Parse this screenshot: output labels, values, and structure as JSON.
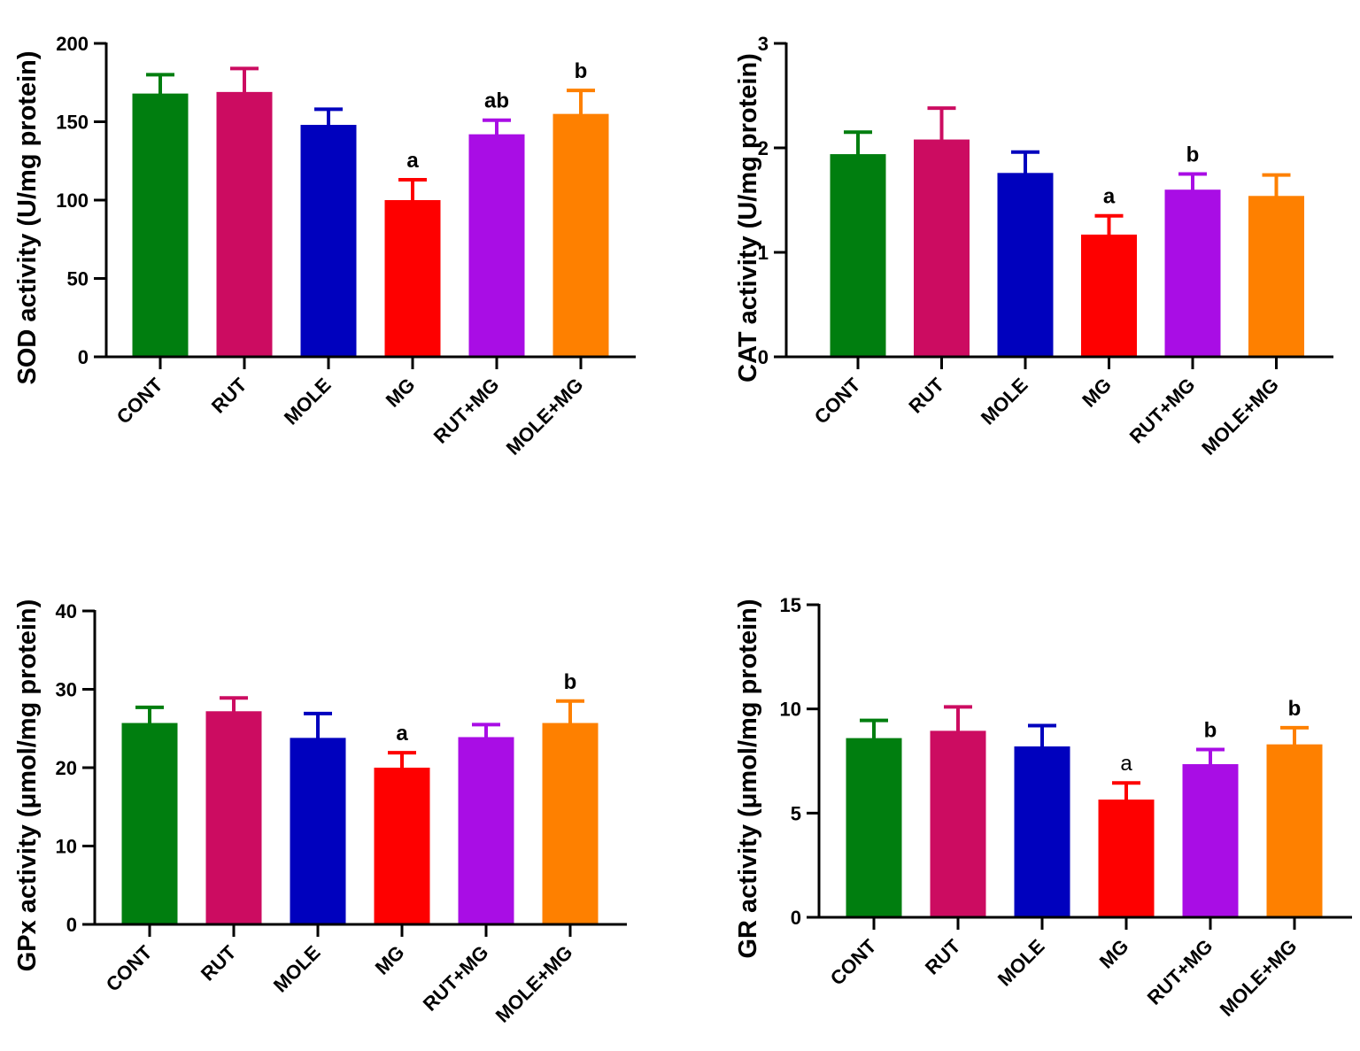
{
  "chart_data": [
    {
      "type": "bar",
      "title": "",
      "xlabel": "",
      "ylabel": "SOD activity (U/mg protein)",
      "ylim": [
        0,
        200
      ],
      "yticks": [
        0,
        50,
        100,
        150,
        200
      ],
      "categories": [
        "CONT",
        "RUT",
        "MOLE",
        "MG",
        "RUT+MG",
        "MOLE+MG"
      ],
      "values": [
        168,
        169,
        148,
        100,
        142,
        155
      ],
      "errors": [
        12,
        15,
        10,
        13,
        9,
        15
      ],
      "significance": [
        "",
        "",
        "",
        "a",
        "ab",
        "b"
      ],
      "colors": [
        "#007e0f",
        "#cc0c61",
        "#0001be",
        "#fe0000",
        "#a90de5",
        "#fe8000"
      ]
    },
    {
      "type": "bar",
      "title": "",
      "xlabel": "",
      "ylabel": "CAT activity (U/mg protein)",
      "ylim": [
        0,
        3
      ],
      "yticks": [
        0,
        1,
        2,
        3
      ],
      "categories": [
        "CONT",
        "RUT",
        "MOLE",
        "MG",
        "RUT+MG",
        "MOLE+MG"
      ],
      "values": [
        1.94,
        2.08,
        1.76,
        1.17,
        1.6,
        1.54
      ],
      "errors": [
        0.21,
        0.3,
        0.2,
        0.18,
        0.15,
        0.2
      ],
      "significance": [
        "",
        "",
        "",
        "a",
        "b",
        ""
      ],
      "colors": [
        "#007e0f",
        "#cc0c61",
        "#0001be",
        "#fe0000",
        "#a90de5",
        "#fe8000"
      ]
    },
    {
      "type": "bar",
      "title": "",
      "xlabel": "",
      "ylabel": "GPx activity (μmol/mg protein)",
      "ylim": [
        0,
        40
      ],
      "yticks": [
        0,
        10,
        20,
        30,
        40
      ],
      "categories": [
        "CONT",
        "RUT",
        "MOLE",
        "MG",
        "RUT+MG",
        "MOLE+MG"
      ],
      "values": [
        25.7,
        27.2,
        23.8,
        20,
        23.9,
        25.7
      ],
      "errors": [
        2,
        1.7,
        3.1,
        1.9,
        1.6,
        2.8
      ],
      "significance": [
        "",
        "",
        "",
        "a",
        "",
        "b"
      ],
      "colors": [
        "#007e0f",
        "#cc0c61",
        "#0001be",
        "#fe0000",
        "#a90de5",
        "#fe8000"
      ]
    },
    {
      "type": "bar",
      "title": "",
      "xlabel": "",
      "ylabel": "GR activity (μmol/mg protein)",
      "ylim": [
        0,
        15
      ],
      "yticks": [
        0,
        5,
        10,
        15
      ],
      "categories": [
        "CONT",
        "RUT",
        "MOLE",
        "MG",
        "RUT+MG",
        "MOLE+MG"
      ],
      "values": [
        8.6,
        8.95,
        8.2,
        5.65,
        7.35,
        8.3
      ],
      "errors": [
        0.85,
        1.15,
        1.0,
        0.8,
        0.7,
        0.8
      ],
      "significance": [
        "",
        "",
        "",
        "a",
        "b",
        "b"
      ],
      "colors": [
        "#007e0f",
        "#cc0c61",
        "#0001be",
        "#fe0000",
        "#a90de5",
        "#fe8000"
      ]
    }
  ]
}
